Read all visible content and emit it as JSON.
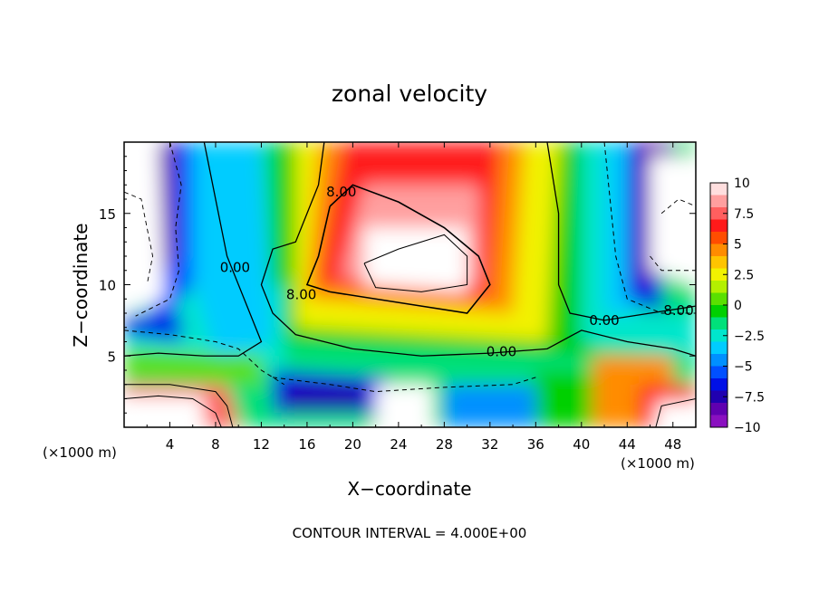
{
  "chart_data": {
    "type": "heatmap",
    "title": "zonal velocity",
    "xlabel": "X−coordinate",
    "ylabel": "Z−coordinate",
    "x_unit": "(×1000 m)",
    "z_unit": "(×1000 m)",
    "xlim": [
      0,
      50
    ],
    "ylim": [
      0,
      20
    ],
    "x_ticks": [
      "4",
      "8",
      "12",
      "16",
      "20",
      "24",
      "28",
      "32",
      "36",
      "40",
      "44",
      "48"
    ],
    "y_ticks": [
      "5",
      "10",
      "15"
    ],
    "colorbar": {
      "range": [
        -10,
        10
      ],
      "tick_labels": [
        "10",
        "7.5",
        "5",
        "2.5",
        "0",
        "−2.5",
        "−5",
        "−7.5",
        "−10"
      ],
      "tick_values": [
        10,
        7.5,
        5,
        2.5,
        0,
        -2.5,
        -5,
        -7.5,
        -10
      ]
    },
    "contour_labels": [
      {
        "text": "8.00",
        "x": 19,
        "z": 16.5
      },
      {
        "text": "8.00",
        "x": 15.5,
        "z": 9.3
      },
      {
        "text": "8.00",
        "x": 48.5,
        "z": 8.2
      },
      {
        "text": "0.00",
        "x": 9.7,
        "z": 11.2
      },
      {
        "text": "0.00",
        "x": 33,
        "z": 5.3
      },
      {
        "text": "0.00",
        "x": 42,
        "z": 7.5
      }
    ],
    "footer": "CONTOUR INTERVAL = 4.000E+00"
  }
}
